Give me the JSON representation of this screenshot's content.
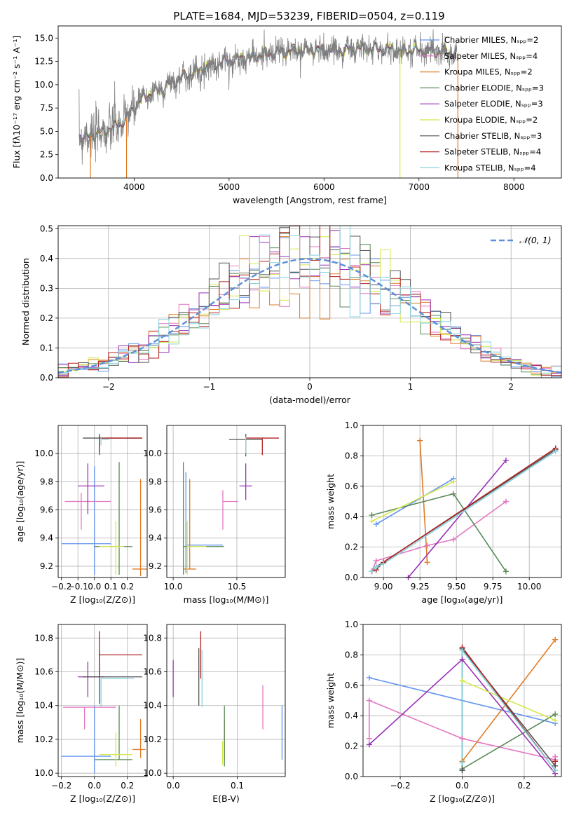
{
  "title": "PLATE=1684, MJD=53239, FIBERID=0504, z=0.119",
  "chart_data": [
    {
      "type": "line",
      "xlabel": "wavelength [Angstrom, rest frame]",
      "ylabel": "Flux [fλ10⁻¹⁷ erg cm⁻² s⁻¹ A⁻¹]",
      "xlim": [
        3200,
        8500
      ],
      "ylim": [
        0,
        16.3
      ],
      "xticks": [
        4000,
        5000,
        6000,
        7000,
        8000
      ],
      "yticks": [
        0,
        2.5,
        5,
        7.5,
        10,
        12.5,
        15
      ],
      "ytick_labels": [
        "0.0",
        "2.5",
        "5.0",
        "7.5",
        "10.0",
        "12.5",
        "15.0"
      ],
      "legend_position": "right",
      "series": [
        {
          "name": "Chabrier MILES, Nₛₚₚ=2",
          "color": "#6495ed"
        },
        {
          "name": "Salpeter MILES, Nₛₚₚ=4",
          "color": "#e377c2"
        },
        {
          "name": "Kroupa MILES, Nₛₚₚ=2",
          "color": "#e07b24"
        },
        {
          "name": "Chabrier ELODIE, Nₛₚₚ=3",
          "color": "#5a8a5a"
        },
        {
          "name": "Salpeter ELODIE, Nₛₚₚ=3",
          "color": "#9b30b5"
        },
        {
          "name": "Kroupa ELODIE, Nₛₚₚ=2",
          "color": "#d4e84a"
        },
        {
          "name": "Chabrier STELIB, Nₛₚₚ=3",
          "color": "#555555"
        },
        {
          "name": "Salpeter STELIB, Nₛₚₚ=4",
          "color": "#b22222"
        },
        {
          "name": "Kroupa STELIB, Nₛₚₚ=4",
          "color": "#87d4e0"
        }
      ],
      "data_series": {
        "name": "",
        "color": "#808080"
      },
      "continuum": {
        "x": [
          3420,
          3500,
          3600,
          3700,
          3800,
          3900,
          4000,
          4100,
          4200,
          4300,
          4400,
          4500,
          4600,
          4800,
          5000,
          5200,
          5400,
          5600,
          5800,
          6000,
          6200,
          6400,
          6600,
          6800,
          7000,
          7200,
          7400
        ],
        "y": [
          4.6,
          4.4,
          4.7,
          5.1,
          5.5,
          6.1,
          7.6,
          8.6,
          9.2,
          9.6,
          10.2,
          10.8,
          11.2,
          12.0,
          12.6,
          12.9,
          13.3,
          13.6,
          13.7,
          13.8,
          13.7,
          13.9,
          13.8,
          13.6,
          13.7,
          13.6,
          13.4
        ]
      }
    },
    {
      "type": "line",
      "xlabel": "(data-model)/error",
      "ylabel": "Normed distribution",
      "xlim": [
        -2.5,
        2.5
      ],
      "ylim": [
        0,
        0.51
      ],
      "xticks": [
        -2,
        -1,
        0,
        1,
        2
      ],
      "xtick_labels": [
        "−2",
        "−1",
        "0",
        "1",
        "2"
      ],
      "yticks": [
        0,
        0.1,
        0.2,
        0.3,
        0.4,
        0.5
      ],
      "ytick_labels": [
        "0.0",
        "0.1",
        "0.2",
        "0.3",
        "0.4",
        "0.5"
      ],
      "legend": "𝒩(0, 1)",
      "legend_position": "top-right",
      "bin_width": 0.1,
      "series_colors": [
        "#6495ed",
        "#e377c2",
        "#e07b24",
        "#5a8a5a",
        "#9b30b5",
        "#d4e84a",
        "#555555",
        "#b22222",
        "#87d4e0"
      ]
    },
    {
      "type": "scatter",
      "xlabel": "Z [log₁₀(Z/Z⊙)]",
      "ylabel": "age  [log₁₀(age/yr)]",
      "xlim": [
        -0.22,
        0.32
      ],
      "ylim": [
        9.12,
        10.2
      ],
      "xticks": [
        -0.2,
        -0.1,
        0.0,
        0.1,
        0.2
      ],
      "xtick_labels": [
        "−0.2",
        "−0.1",
        "0.0",
        "0.1",
        "0.2"
      ],
      "yticks": [
        9.2,
        9.4,
        9.6,
        9.8,
        10.0
      ],
      "ytick_labels": [
        "9.2",
        "9.4",
        "9.6",
        "9.8",
        "10.0"
      ],
      "points": [
        {
          "color": "#6495ed",
          "x": 0.0,
          "xerr": [
            0.2,
            0.1
          ],
          "y": 9.36,
          "yerr": [
            0.22,
            0.55
          ]
        },
        {
          "color": "#e377c2",
          "x": -0.08,
          "xerr": [
            0.1,
            0.18
          ],
          "y": 9.66,
          "yerr": [
            0.2,
            0.06
          ]
        },
        {
          "color": "#e07b24",
          "x": 0.28,
          "xerr": [
            0.05,
            0.04
          ],
          "y": 9.18,
          "yerr": [
            0.05,
            0.64
          ]
        },
        {
          "color": "#5a8a5a",
          "x": 0.15,
          "xerr": [
            0.15,
            0.08
          ],
          "y": 9.34,
          "yerr": [
            0.2,
            0.6
          ]
        },
        {
          "color": "#9b30b5",
          "x": -0.04,
          "xerr": [
            0.06,
            0.1
          ],
          "y": 9.77,
          "yerr": [
            0.2,
            0.16
          ]
        },
        {
          "color": "#d4e84a",
          "x": 0.13,
          "xerr": [
            0.1,
            0.05
          ],
          "y": 9.34,
          "yerr": [
            0.2,
            0.18
          ]
        },
        {
          "color": "#555555",
          "x": 0.03,
          "xerr": [
            0.1,
            0.26
          ],
          "y": 10.11,
          "yerr": [
            0.12,
            0.03
          ]
        },
        {
          "color": "#b22222",
          "x": 0.03,
          "xerr": [
            0.0,
            0.26
          ],
          "y": 10.11,
          "yerr": [
            0.1,
            0.02
          ]
        },
        {
          "color": "#87d4e0",
          "x": 0.04,
          "xerr": [
            0.0,
            0.05
          ],
          "y": 10.1,
          "yerr": [
            0.04,
            0.02
          ]
        }
      ]
    },
    {
      "type": "scatter",
      "xlabel": "mass [log₁₀(M/M⊙)]",
      "ylabel": "",
      "xlim": [
        9.95,
        10.88
      ],
      "ylim": [
        9.12,
        10.2
      ],
      "xticks": [
        10.0,
        10.5
      ],
      "xtick_labels": [
        "10.0",
        "10.5"
      ],
      "yticks": [
        9.2,
        9.4,
        9.6,
        9.8,
        10.0
      ],
      "ytick_labels": [
        "9.2",
        "9.4",
        "9.6",
        "9.8",
        "10.0"
      ],
      "points": [
        {
          "color": "#6495ed",
          "x": 10.1,
          "xerr": [
            0.0,
            0.29
          ],
          "y": 9.35,
          "yerr": [
            0.2,
            0.52
          ]
        },
        {
          "color": "#e377c2",
          "x": 10.39,
          "xerr": [
            0.0,
            0.12
          ],
          "y": 9.66,
          "yerr": [
            0.2,
            0.08
          ]
        },
        {
          "color": "#e07b24",
          "x": 10.13,
          "xerr": [
            0.05,
            0.05
          ],
          "y": 9.18,
          "yerr": [
            0.0,
            0.64
          ]
        },
        {
          "color": "#5a8a5a",
          "x": 10.08,
          "xerr": [
            0.0,
            0.32
          ],
          "y": 9.34,
          "yerr": [
            0.2,
            0.6
          ]
        },
        {
          "color": "#9b30b5",
          "x": 10.57,
          "xerr": [
            0.05,
            0.05
          ],
          "y": 9.77,
          "yerr": [
            0.1,
            0.16
          ]
        },
        {
          "color": "#d4e84a",
          "x": 10.11,
          "xerr": [
            0.0,
            0.15
          ],
          "y": 9.34,
          "yerr": [
            0.2,
            0.18
          ]
        },
        {
          "color": "#555555",
          "x": 10.57,
          "xerr": [
            0.13,
            0.13
          ],
          "y": 10.1,
          "yerr": [
            0.12,
            0.04
          ]
        },
        {
          "color": "#b22222",
          "x": 10.7,
          "xerr": [
            0.13,
            0.13
          ],
          "y": 10.11,
          "yerr": [
            0.12,
            0.0
          ]
        },
        {
          "color": "#87d4e0",
          "x": 10.57,
          "xerr": [
            0.0,
            0.0
          ],
          "y": 10.1,
          "yerr": [
            0.1,
            0.02
          ]
        }
      ]
    },
    {
      "type": "line",
      "xlabel": "age  [log₁₀(age/yr)]",
      "ylabel": "mass weight",
      "xlim": [
        8.86,
        10.22
      ],
      "ylim": [
        0,
        1
      ],
      "xticks": [
        9.0,
        9.25,
        9.5,
        9.75,
        10.0
      ],
      "xtick_labels": [
        "9.00",
        "9.25",
        "9.50",
        "9.75",
        "10.00"
      ],
      "yticks": [
        0,
        0.2,
        0.4,
        0.6,
        0.8,
        1.0
      ],
      "ytick_labels": [
        "0.0",
        "0.2",
        "0.4",
        "0.6",
        "0.8",
        "1.0"
      ],
      "series": [
        {
          "color": "#6495ed",
          "x": [
            8.95,
            9.48
          ],
          "y": [
            0.35,
            0.65
          ]
        },
        {
          "color": "#e377c2",
          "x": [
            8.92,
            8.95,
            9.3,
            9.48,
            9.84
          ],
          "y": [
            0.04,
            0.11,
            0.21,
            0.25,
            0.5
          ]
        },
        {
          "color": "#e07b24",
          "x": [
            9.25,
            9.3
          ],
          "y": [
            0.9,
            0.1
          ]
        },
        {
          "color": "#5a8a5a",
          "x": [
            8.92,
            9.48,
            9.84
          ],
          "y": [
            0.41,
            0.55,
            0.04
          ]
        },
        {
          "color": "#9b30b5",
          "x": [
            9.17,
            9.84
          ],
          "y": [
            0.0,
            0.77
          ]
        },
        {
          "color": "#d4e84a",
          "x": [
            8.92,
            9.48
          ],
          "y": [
            0.37,
            0.63
          ]
        },
        {
          "color": "#555555",
          "x": [
            8.92,
            8.95,
            10.18
          ],
          "y": [
            0.04,
            0.07,
            0.84
          ]
        },
        {
          "color": "#b22222",
          "x": [
            8.92,
            8.95,
            9.0,
            10.18
          ],
          "y": [
            0.04,
            0.05,
            0.1,
            0.85
          ]
        },
        {
          "color": "#87d4e0",
          "x": [
            8.92,
            8.95,
            9.0,
            10.18
          ],
          "y": [
            0.04,
            0.07,
            0.09,
            0.83
          ]
        }
      ]
    },
    {
      "type": "scatter",
      "xlabel": "Z [log₁₀(Z/Z⊙)]",
      "ylabel": "mass [log₁₀(M/M⊙)]",
      "xlim": [
        -0.22,
        0.32
      ],
      "ylim": [
        9.98,
        10.88
      ],
      "xticks": [
        -0.2,
        0.0,
        0.2
      ],
      "xtick_labels": [
        "−0.2",
        "0.0",
        "0.2"
      ],
      "yticks": [
        10.0,
        10.2,
        10.4,
        10.6,
        10.8
      ],
      "ytick_labels": [
        "10.0",
        "10.2",
        "10.4",
        "10.6",
        "10.8"
      ],
      "points": [
        {
          "color": "#6495ed",
          "x": 0.0,
          "xerr": [
            0.2,
            0.1
          ],
          "y": 10.1,
          "yerr": [
            0.1,
            0.3
          ]
        },
        {
          "color": "#e377c2",
          "x": -0.06,
          "xerr": [
            0.13,
            0.19
          ],
          "y": 10.39,
          "yerr": [
            0.13,
            0.0
          ]
        },
        {
          "color": "#e07b24",
          "x": 0.28,
          "xerr": [
            0.05,
            0.03
          ],
          "y": 10.14,
          "yerr": [
            0.05,
            0.18
          ]
        },
        {
          "color": "#5a8a5a",
          "x": 0.15,
          "xerr": [
            0.15,
            0.08
          ],
          "y": 10.08,
          "yerr": [
            0.0,
            0.32
          ]
        },
        {
          "color": "#9b30b5",
          "x": -0.04,
          "xerr": [
            0.06,
            0.1
          ],
          "y": 10.57,
          "yerr": [
            0.12,
            0.09
          ]
        },
        {
          "color": "#d4e84a",
          "x": 0.13,
          "xerr": [
            0.1,
            0.1
          ],
          "y": 10.11,
          "yerr": [
            0.07,
            0.13
          ]
        },
        {
          "color": "#555555",
          "x": 0.03,
          "xerr": [
            0.1,
            0.26
          ],
          "y": 10.57,
          "yerr": [
            0.16,
            0.16
          ]
        },
        {
          "color": "#b22222",
          "x": 0.03,
          "xerr": [
            0.0,
            0.26
          ],
          "y": 10.7,
          "yerr": [
            0.13,
            0.14
          ]
        },
        {
          "color": "#87d4e0",
          "x": 0.04,
          "xerr": [
            0.0,
            0.2
          ],
          "y": 10.56,
          "yerr": [
            0.17,
            0.0
          ]
        }
      ]
    },
    {
      "type": "scatter",
      "xlabel": "E(B-V)",
      "ylabel": "",
      "xlim": [
        -0.01,
        0.175
      ],
      "ylim": [
        9.98,
        10.88
      ],
      "xticks": [
        0.0,
        0.1
      ],
      "xtick_labels": [
        "0.0",
        "0.1"
      ],
      "yticks": [
        10.0,
        10.2,
        10.4,
        10.6,
        10.8
      ],
      "ytick_labels": [
        "10.0",
        "10.2",
        "10.4",
        "10.6",
        "10.8"
      ],
      "points": [
        {
          "color": "#6495ed",
          "x": 0.17,
          "y": 10.24,
          "yerr": [
            0.16,
            0.16
          ]
        },
        {
          "color": "#e377c2",
          "x": 0.14,
          "y": 10.39,
          "yerr": [
            0.13,
            0.13
          ]
        },
        {
          "color": "#e07b24",
          "x": 0.08,
          "y": 10.2,
          "yerr": [
            0.12,
            0.12
          ]
        },
        {
          "color": "#5a8a5a",
          "x": 0.08,
          "y": 10.22,
          "yerr": [
            0.18,
            0.18
          ]
        },
        {
          "color": "#9b30b5",
          "x": 0.0,
          "y": 10.56,
          "yerr": [
            0.11,
            0.11
          ]
        },
        {
          "color": "#d4e84a",
          "x": 0.077,
          "y": 10.12,
          "yerr": [
            0.07,
            0.07
          ]
        },
        {
          "color": "#555555",
          "x": 0.04,
          "y": 10.57,
          "yerr": [
            0.17,
            0.17
          ]
        },
        {
          "color": "#b22222",
          "x": 0.043,
          "y": 10.7,
          "yerr": [
            0.14,
            0.14
          ]
        },
        {
          "color": "#87d4e0",
          "x": 0.045,
          "y": 10.56,
          "yerr": [
            0.17,
            0.17
          ]
        }
      ]
    },
    {
      "type": "line",
      "xlabel": "Z [log₁₀(Z/Z⊙)]",
      "ylabel": "mass weight",
      "xlim": [
        -0.32,
        0.32
      ],
      "ylim": [
        0,
        1
      ],
      "xticks": [
        -0.2,
        0.0,
        0.2
      ],
      "xtick_labels": [
        "−0.2",
        "0.0",
        "0.2"
      ],
      "yticks": [
        0,
        0.2,
        0.4,
        0.6,
        0.8,
        1.0
      ],
      "ytick_labels": [
        "0.0",
        "0.2",
        "0.4",
        "0.6",
        "0.8",
        "1.0"
      ],
      "series": [
        {
          "color": "#6495ed",
          "x": [
            -0.3,
            0.3
          ],
          "y": [
            0.65,
            0.35
          ]
        },
        {
          "color": "#e377c2",
          "x": [
            -0.3,
            -0.3,
            0.0,
            0.3,
            0.3
          ],
          "y": [
            0.25,
            0.5,
            0.25,
            0.11,
            0.13
          ]
        },
        {
          "color": "#e07b24",
          "x": [
            0.0,
            0.3
          ],
          "y": [
            0.1,
            0.9
          ]
        },
        {
          "color": "#5a8a5a",
          "x": [
            0.0,
            0.0,
            0.3
          ],
          "y": [
            0.04,
            0.05,
            0.41
          ]
        },
        {
          "color": "#9b30b5",
          "x": [
            -0.3,
            0.0,
            0.3
          ],
          "y": [
            0.21,
            0.77,
            0.02
          ]
        },
        {
          "color": "#d4e84a",
          "x": [
            0.0,
            0.3
          ],
          "y": [
            0.63,
            0.37
          ]
        },
        {
          "color": "#555555",
          "x": [
            0.0,
            0.0,
            0.3
          ],
          "y": [
            0.04,
            0.84,
            0.07
          ]
        },
        {
          "color": "#b22222",
          "x": [
            0.0,
            0.3,
            0.3
          ],
          "y": [
            0.85,
            0.04,
            0.1
          ]
        },
        {
          "color": "#87d4e0",
          "x": [
            0.0,
            0.0,
            0.3
          ],
          "y": [
            0.09,
            0.83,
            0.04
          ]
        }
      ]
    }
  ]
}
